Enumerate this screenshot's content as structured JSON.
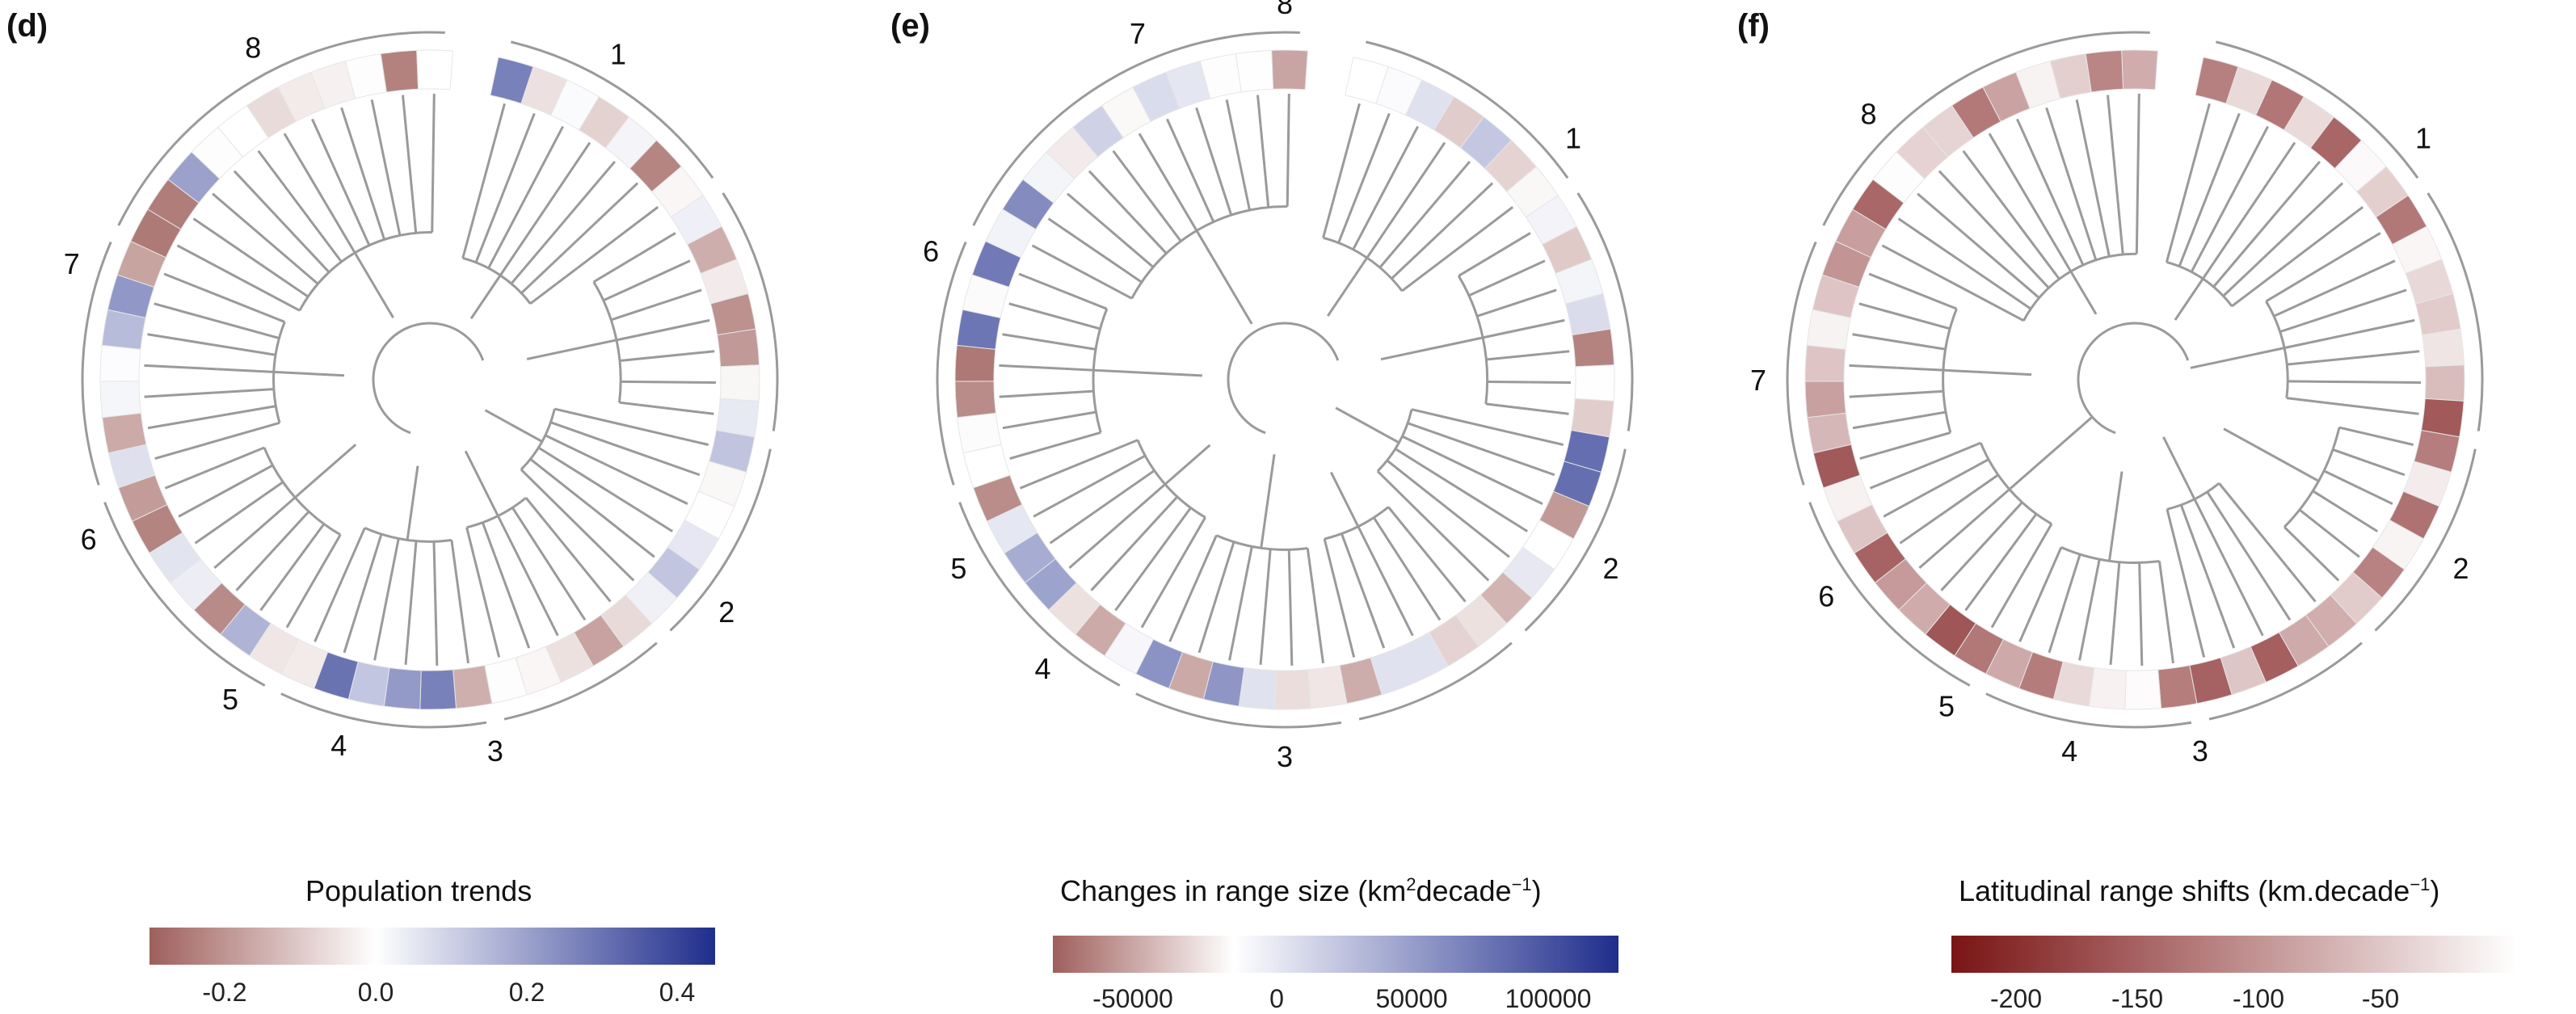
{
  "panels": [
    {
      "letter": "(d)",
      "colorbar": {
        "title": "Population trends",
        "ticks": [
          "-0.2",
          "0.0",
          "0.2",
          "0.4"
        ],
        "tick_values": [
          -0.2,
          0.0,
          0.2,
          0.4
        ],
        "range": [
          -0.3,
          0.45
        ],
        "colors": [
          "#9e5f5b",
          "#ffffff",
          "#1f2d8c"
        ]
      },
      "clades": [
        "1",
        "2",
        "3",
        "4",
        "5",
        "6",
        "7",
        "8"
      ]
    },
    {
      "letter": "(e)",
      "colorbar": {
        "title_main": "Changes in range size (km",
        "title_sup": "2",
        "title_mid": "decade",
        "title_sup2": "−1",
        "title_end": ")",
        "ticks": [
          "-50000",
          "0",
          "50000",
          "100000"
        ],
        "tick_values": [
          -50000,
          0,
          50000,
          100000
        ],
        "range": [
          -70000,
          145000
        ],
        "colors": [
          "#9e5f5b",
          "#ffffff",
          "#1f2d8c"
        ]
      },
      "clades": [
        "1",
        "2",
        "3",
        "4",
        "5",
        "6",
        "7",
        "8"
      ]
    },
    {
      "letter": "(f)",
      "colorbar": {
        "title_main": "Latitudinal range shifts (km.decade",
        "title_sup": "−1",
        "title_end": ")",
        "ticks": [
          "-200",
          "-150",
          "-100",
          "-50"
        ],
        "tick_values": [
          -200,
          -150,
          -100,
          -50
        ],
        "range": [
          -230,
          0
        ],
        "colors": [
          "#7a1414",
          "#ffffff"
        ]
      },
      "clades": [
        "1",
        "2",
        "3",
        "4",
        "5",
        "6",
        "7",
        "8"
      ]
    }
  ]
}
